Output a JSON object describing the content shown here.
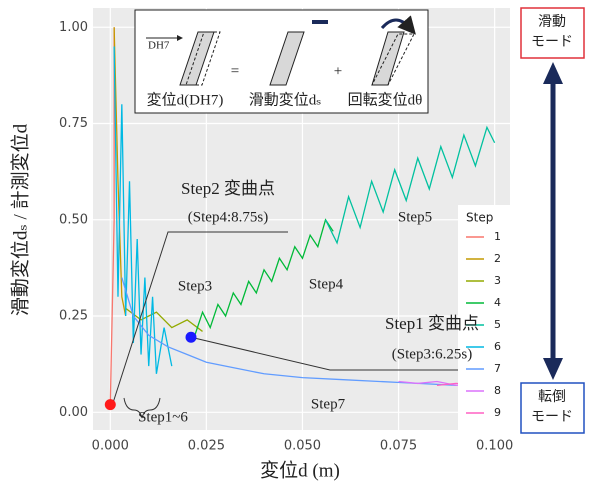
{
  "chart_data": {
    "type": "line",
    "y_label": "滑動変位dₛ / 計測変位d",
    "x_label": "変位d (m)",
    "xlim": [
      -0.0045,
      0.104
    ],
    "ylim": [
      -0.046,
      1.05
    ],
    "xticks": [
      {
        "value": 0,
        "label": "0.000"
      },
      {
        "value": 0.025,
        "label": "0.025"
      },
      {
        "value": 0.05,
        "label": "0.050"
      },
      {
        "value": 0.075,
        "label": "0.075"
      },
      {
        "value": 0.1,
        "label": "0.100"
      }
    ],
    "yticks": [
      {
        "value": 0,
        "label": "0.00"
      },
      {
        "value": 0.25,
        "label": "0.25"
      },
      {
        "value": 0.5,
        "label": "0.50"
      },
      {
        "value": 0.75,
        "label": "0.75"
      },
      {
        "value": 1,
        "label": "1.00"
      }
    ],
    "grid": true,
    "legend_title": "Step",
    "series": [
      {
        "name": "1",
        "color": "#F8766D",
        "x": [
          0,
          0.001,
          0.001
        ],
        "y": [
          0.02,
          0.5,
          1.0
        ]
      },
      {
        "name": "2",
        "color": "#C49A00",
        "x": [
          0.001,
          0.002,
          0.003,
          0.004
        ],
        "y": [
          1.0,
          0.6,
          0.3,
          0.25
        ]
      },
      {
        "name": "3",
        "color": "#93AA00",
        "x": [
          0.004,
          0.008,
          0.012,
          0.016,
          0.02,
          0.024
        ],
        "y": [
          0.27,
          0.24,
          0.26,
          0.22,
          0.24,
          0.21
        ]
      },
      {
        "name": "4",
        "color": "#00BA38",
        "x": [
          0.022,
          0.024,
          0.026,
          0.028,
          0.03,
          0.032,
          0.034,
          0.036,
          0.038,
          0.04,
          0.042,
          0.044,
          0.046,
          0.048,
          0.05,
          0.052,
          0.054,
          0.056,
          0.058
        ],
        "y": [
          0.2,
          0.26,
          0.22,
          0.28,
          0.25,
          0.31,
          0.28,
          0.34,
          0.31,
          0.37,
          0.34,
          0.4,
          0.37,
          0.43,
          0.4,
          0.46,
          0.43,
          0.5,
          0.47
        ]
      },
      {
        "name": "5",
        "color": "#00C19F",
        "x": [
          0.056,
          0.059,
          0.062,
          0.065,
          0.068,
          0.071,
          0.074,
          0.077,
          0.08,
          0.083,
          0.086,
          0.089,
          0.092,
          0.095,
          0.098,
          0.1
        ],
        "y": [
          0.5,
          0.44,
          0.56,
          0.48,
          0.6,
          0.52,
          0.63,
          0.55,
          0.66,
          0.58,
          0.69,
          0.61,
          0.72,
          0.64,
          0.74,
          0.7
        ]
      },
      {
        "name": "6",
        "color": "#00B9E3",
        "x": [
          0.001,
          0.002,
          0.003,
          0.004,
          0.005,
          0.006,
          0.007,
          0.008,
          0.009,
          0.01,
          0.011,
          0.012,
          0.014,
          0.016
        ],
        "y": [
          0.95,
          0.3,
          0.8,
          0.25,
          0.6,
          0.18,
          0.45,
          0.15,
          0.35,
          0.12,
          0.3,
          0.1,
          0.22,
          0.12
        ]
      },
      {
        "name": "7",
        "color": "#619CFF",
        "x": [
          0.003,
          0.006,
          0.01,
          0.015,
          0.02,
          0.025,
          0.03,
          0.04,
          0.05,
          0.06,
          0.07,
          0.08,
          0.09
        ],
        "y": [
          0.35,
          0.25,
          0.2,
          0.17,
          0.15,
          0.13,
          0.12,
          0.1,
          0.09,
          0.085,
          0.08,
          0.075,
          0.07
        ]
      },
      {
        "name": "8",
        "color": "#DB72FB",
        "x": [
          0.075,
          0.08,
          0.085,
          0.09,
          0.095
        ],
        "y": [
          0.08,
          0.075,
          0.08,
          0.07,
          0.075
        ]
      },
      {
        "name": "9",
        "color": "#FF61C3",
        "x": [
          0.085,
          0.09,
          0.095,
          0.1
        ],
        "y": [
          0.07,
          0.075,
          0.07,
          0.072
        ]
      }
    ],
    "points": [
      {
        "x": 0,
        "y": 0.02,
        "color": "#ff1a1a"
      },
      {
        "x": 0.021,
        "y": 0.195,
        "color": "#1a1aff"
      }
    ],
    "annotations": [
      {
        "text": "Step2 変曲点",
        "color": "#ff1a1a"
      },
      {
        "text": "(Step4:8.75s)",
        "color": "#ff1a1a"
      },
      {
        "text": "Step3",
        "color": "#222222"
      },
      {
        "text": "Step4",
        "color": "#222222"
      },
      {
        "text": "Step5",
        "color": "#222222"
      },
      {
        "text": "Step7",
        "color": "#222222"
      },
      {
        "text": "Step1~6",
        "color": "#222222"
      },
      {
        "text": "Step1 変曲点",
        "color": "#1a1aff"
      },
      {
        "text": "(Step3:6.25s)",
        "color": "#1a1aff"
      }
    ],
    "inset": {
      "arrow_label": "DH7",
      "labels": [
        "変位d(DH7)",
        "=",
        "滑動変位dₛ",
        "+",
        "回転変位dθ"
      ]
    },
    "mode_boxes": [
      {
        "lines": [
          "滑動",
          "モード"
        ],
        "color": "#e0303a"
      },
      {
        "lines": [
          "転倒",
          "モード"
        ],
        "color": "#2050c0"
      }
    ]
  }
}
